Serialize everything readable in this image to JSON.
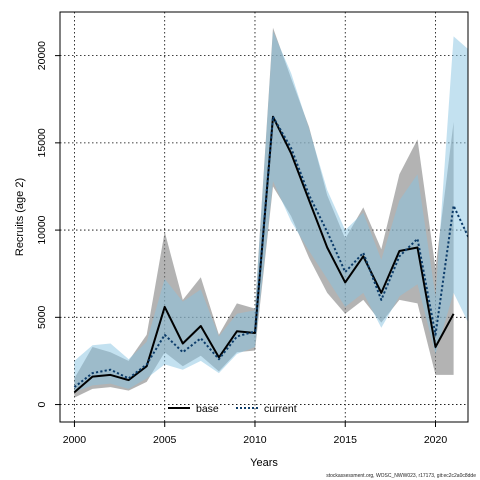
{
  "chart_data": {
    "type": "line",
    "xlabel": "Years",
    "ylabel": "Recruits (age 2)",
    "xlim": [
      1999.2,
      2021.8
    ],
    "ylim": [
      -1000,
      22500
    ],
    "xticks": [
      2000,
      2005,
      2010,
      2015,
      2020
    ],
    "yticks": [
      0,
      5000,
      10000,
      15000,
      20000
    ],
    "grid": true,
    "legend_position": "bottom-center",
    "footnote": "stockassessment.org, WOSC_NWW023, r17173, git:ec2c2a0c8dde",
    "series": [
      {
        "name": "base",
        "color": "#000000",
        "linestyle": "solid",
        "band_color": "#808080",
        "x": [
          2000,
          2001,
          2002,
          2003,
          2004,
          2005,
          2006,
          2007,
          2008,
          2009,
          2010,
          2011,
          2012,
          2013,
          2014,
          2015,
          2016,
          2017,
          2018,
          2019,
          2020,
          2021
        ],
        "values": [
          700,
          1600,
          1700,
          1400,
          2200,
          5600,
          3500,
          4500,
          2700,
          4200,
          4100,
          16500,
          14400,
          11700,
          9000,
          7000,
          8500,
          6400,
          8800,
          9000,
          3300,
          5200
        ],
        "lower": [
          400,
          900,
          1000,
          800,
          1300,
          3000,
          2200,
          2800,
          1900,
          3000,
          3100,
          12500,
          10800,
          8400,
          6400,
          5200,
          6000,
          4700,
          6000,
          5800,
          1700,
          1700
        ],
        "upper": [
          1500,
          3300,
          3000,
          2500,
          4000,
          9900,
          6000,
          7300,
          4000,
          5800,
          5500,
          21600,
          18700,
          15900,
          12000,
          9500,
          11300,
          8900,
          13200,
          15200,
          7800,
          16200
        ]
      },
      {
        "name": "current",
        "color": "#0c3c6a",
        "linestyle": "dotted",
        "band_color": "#87c3e2",
        "x": [
          2000,
          2001,
          2002,
          2003,
          2004,
          2005,
          2006,
          2007,
          2008,
          2009,
          2010,
          2011,
          2012,
          2013,
          2014,
          2015,
          2016,
          2017,
          2018,
          2019,
          2020,
          2021,
          2022
        ],
        "values": [
          1000,
          1800,
          2000,
          1500,
          2300,
          4000,
          3000,
          3800,
          2600,
          3900,
          4200,
          16500,
          14700,
          12000,
          9900,
          7600,
          8700,
          6000,
          8500,
          9500,
          4000,
          11400,
          9200
        ],
        "lower": [
          700,
          1100,
          1200,
          900,
          1500,
          2300,
          2000,
          2500,
          1800,
          2900,
          3300,
          12800,
          10500,
          8800,
          7200,
          5600,
          6400,
          4400,
          6200,
          6900,
          2900,
          6400,
          4300
        ],
        "upper": [
          2500,
          3400,
          3500,
          2600,
          3600,
          7200,
          5900,
          6600,
          3900,
          5200,
          5400,
          21400,
          19000,
          15800,
          12300,
          10000,
          11000,
          8300,
          11700,
          13200,
          6200,
          21100,
          20200
        ]
      }
    ]
  }
}
